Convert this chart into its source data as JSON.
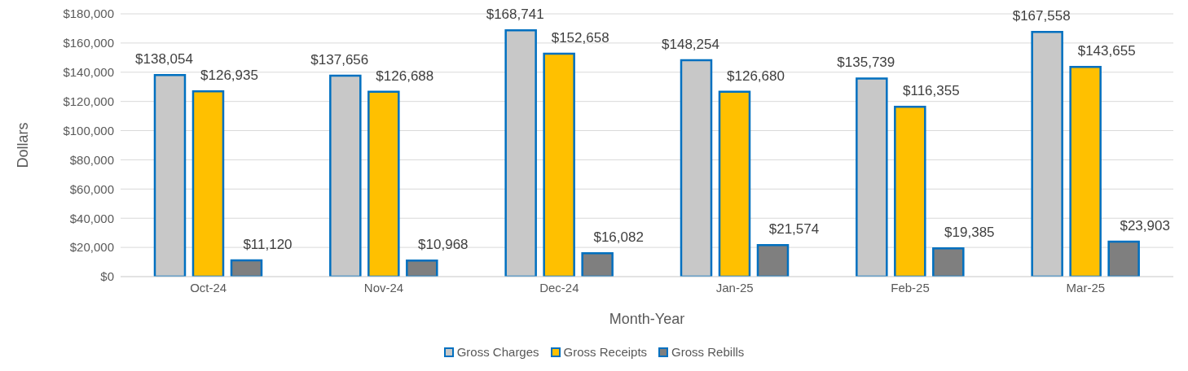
{
  "chart_data": {
    "type": "bar",
    "xlabel": "Month-Year",
    "ylabel": "Dollars",
    "categories": [
      "Oct-24",
      "Nov-24",
      "Dec-24",
      "Jan-25",
      "Feb-25",
      "Mar-25"
    ],
    "series": [
      {
        "name": "Gross Charges",
        "color": "#c8c8c8",
        "values": [
          138054,
          137656,
          168741,
          148254,
          135739,
          167558
        ],
        "value_labels": [
          "$138,054",
          "$137,656",
          "$168,741",
          "$148,254",
          "$135,739",
          "$167,558"
        ]
      },
      {
        "name": "Gross Receipts",
        "color": "#ffc000",
        "values": [
          126935,
          126688,
          152658,
          126680,
          116355,
          143655
        ],
        "value_labels": [
          "$126,935",
          "$126,688",
          "$152,658",
          "$126,680",
          "$116,355",
          "$143,655"
        ]
      },
      {
        "name": "Gross Rebills",
        "color": "#7f7f7f",
        "values": [
          11120,
          10968,
          16082,
          21574,
          19385,
          23903
        ],
        "value_labels": [
          "$11,120",
          "$10,968",
          "$16,082",
          "$21,574",
          "$19,385",
          "$23,903"
        ]
      }
    ],
    "ylim": [
      0,
      180000
    ],
    "yticks": [
      {
        "value": 0,
        "label": "$0"
      },
      {
        "value": 20000,
        "label": "$20,000"
      },
      {
        "value": 40000,
        "label": "$40,000"
      },
      {
        "value": 60000,
        "label": "$60,000"
      },
      {
        "value": 80000,
        "label": "$80,000"
      },
      {
        "value": 100000,
        "label": "$100,000"
      },
      {
        "value": 120000,
        "label": "$120,000"
      },
      {
        "value": 140000,
        "label": "$140,000"
      },
      {
        "value": 160000,
        "label": "$160,000"
      },
      {
        "value": 180000,
        "label": "$180,000"
      }
    ],
    "grid": "y",
    "legend": "bottom"
  }
}
